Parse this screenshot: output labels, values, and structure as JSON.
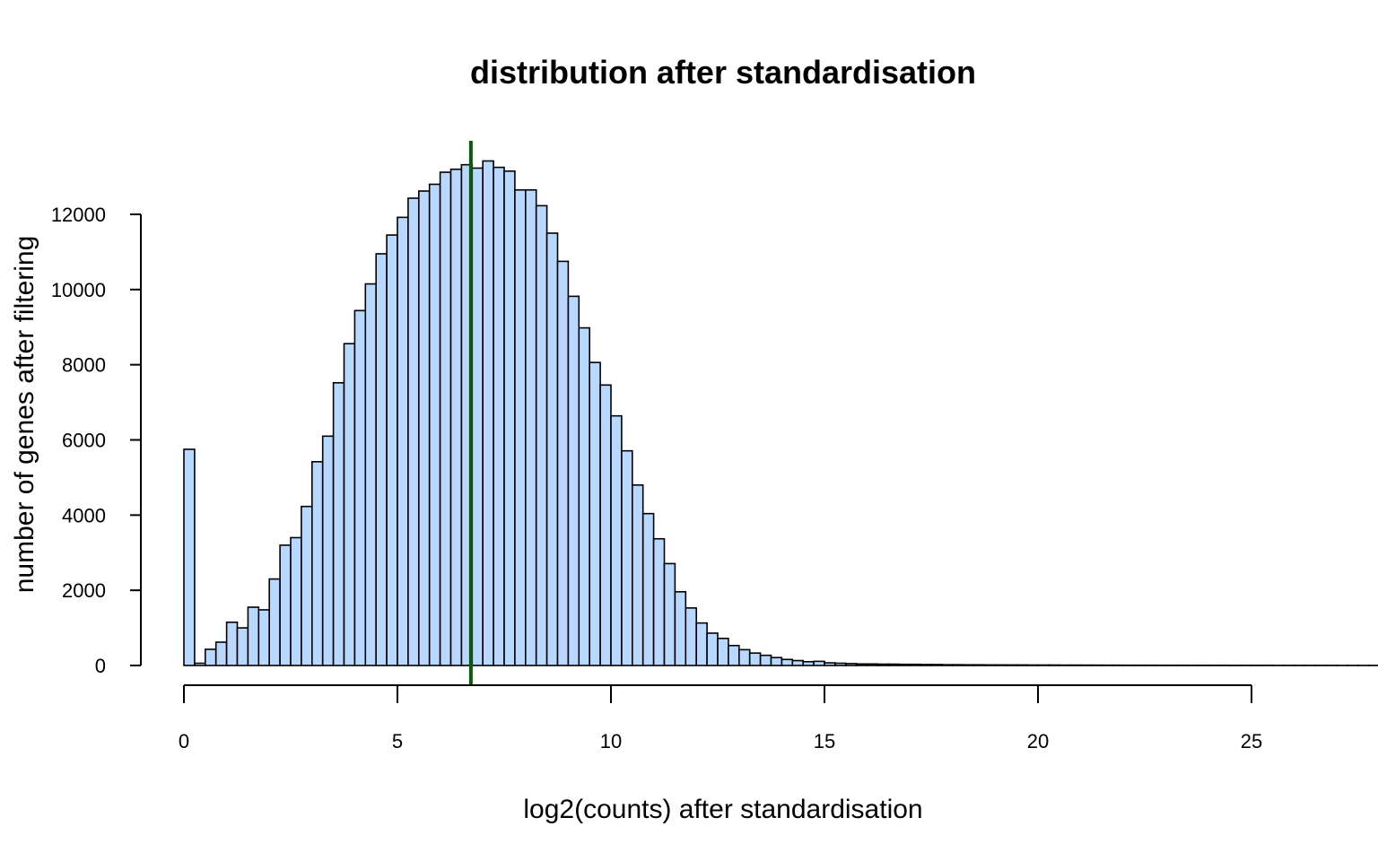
{
  "chart_data": {
    "type": "bar",
    "title": "distribution after standardisation",
    "xlabel": "log2(counts) after standardisation",
    "ylabel": "number of genes after filtering",
    "bin_width": 0.25,
    "x_start": 0,
    "xlim": [
      0,
      25
    ],
    "ylim": [
      0,
      13500
    ],
    "x_ticks": [
      0,
      5,
      10,
      15,
      20,
      25
    ],
    "y_ticks": [
      0,
      2000,
      4000,
      6000,
      8000,
      10000,
      12000
    ],
    "values": [
      5750,
      60,
      430,
      620,
      1150,
      1000,
      1550,
      1480,
      2300,
      3200,
      3400,
      4230,
      5420,
      6100,
      7520,
      8560,
      9440,
      10150,
      10950,
      11450,
      11920,
      12430,
      12620,
      12800,
      13120,
      13200,
      13320,
      13230,
      13420,
      13250,
      13150,
      12650,
      12650,
      12230,
      11500,
      10750,
      9820,
      8980,
      8060,
      7460,
      6640,
      5710,
      4800,
      4040,
      3370,
      2710,
      1960,
      1530,
      1130,
      860,
      720,
      530,
      420,
      330,
      270,
      210,
      160,
      130,
      100,
      110,
      70,
      60,
      50,
      40,
      40,
      35,
      35,
      30,
      30,
      25,
      25,
      20,
      20,
      18,
      18,
      15,
      15,
      14,
      14,
      12,
      12,
      12,
      10,
      10,
      9,
      9,
      8,
      8,
      7,
      7,
      7,
      6,
      6,
      6,
      5,
      5,
      5,
      5,
      4,
      4,
      4,
      4,
      3,
      3,
      3,
      3,
      3,
      3,
      2,
      2,
      2,
      2,
      2,
      2,
      2,
      1,
      1,
      1,
      1,
      1
    ],
    "median_line": 6.72,
    "colors": {
      "bar_fill": "#b8d8ff",
      "bar_stroke": "#000000",
      "median_line": "#0a5a0a"
    },
    "grid": false,
    "legend": "none"
  }
}
